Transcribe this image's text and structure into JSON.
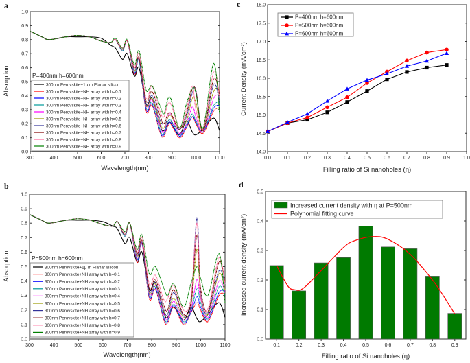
{
  "chart_data": [
    {
      "panel": "a",
      "type": "line",
      "annotation": "P=400nm h=600nm",
      "xlabel": "Wavelength(nm)",
      "ylabel": "Absorption",
      "xlim": [
        300,
        1100
      ],
      "ylim": [
        0,
        1.0
      ],
      "xticks": [
        "300",
        "400",
        "500",
        "600",
        "700",
        "800",
        "900",
        "1000",
        "1100"
      ],
      "yticks": [
        "0.0",
        "0.1",
        "0.2",
        "0.3",
        "0.4",
        "0.5",
        "0.6",
        "0.7",
        "0.8",
        "0.9",
        "1.0"
      ],
      "legend": "bottom-left",
      "x": [
        300,
        350,
        380,
        450,
        500,
        550,
        600,
        640,
        660,
        690,
        710,
        740,
        760,
        790,
        815,
        850,
        865,
        890,
        930,
        960,
        985,
        1000,
        1030,
        1075,
        1100
      ],
      "series": [
        {
          "name": "300nm Perovskite+1μ m Planar silicon",
          "color": "#000000",
          "values": [
            0.86,
            0.82,
            0.8,
            0.82,
            0.82,
            0.82,
            0.81,
            0.76,
            0.74,
            0.66,
            0.7,
            0.54,
            0.6,
            0.34,
            0.38,
            0.18,
            0.15,
            0.21,
            0.12,
            0.22,
            0.14,
            0.12,
            0.16,
            0.24,
            0.15
          ]
        },
        {
          "name": "300nm Perovskite+NH array with h=0.1",
          "color": "#ff0000",
          "values": [
            0.86,
            0.82,
            0.8,
            0.82,
            0.83,
            0.82,
            0.79,
            0.78,
            0.8,
            0.72,
            0.79,
            0.55,
            0.66,
            0.29,
            0.33,
            0.13,
            0.11,
            0.2,
            0.1,
            0.17,
            0.25,
            0.2,
            0.13,
            0.29,
            0.31
          ]
        },
        {
          "name": "300nm Perovskite+NH array with h=0.2",
          "color": "#0000ff",
          "values": [
            0.86,
            0.82,
            0.8,
            0.82,
            0.83,
            0.82,
            0.79,
            0.78,
            0.8,
            0.72,
            0.79,
            0.56,
            0.65,
            0.3,
            0.34,
            0.14,
            0.12,
            0.21,
            0.11,
            0.18,
            0.25,
            0.21,
            0.14,
            0.31,
            0.33
          ]
        },
        {
          "name": "300nm Perovskite+NH array with h=0.3",
          "color": "#009999",
          "values": [
            0.86,
            0.82,
            0.8,
            0.82,
            0.83,
            0.82,
            0.79,
            0.78,
            0.8,
            0.72,
            0.79,
            0.57,
            0.65,
            0.31,
            0.35,
            0.15,
            0.13,
            0.23,
            0.12,
            0.19,
            0.27,
            0.22,
            0.14,
            0.33,
            0.35
          ]
        },
        {
          "name": "300nm Perovskite+NH array with h=0.4",
          "color": "#ff00ff",
          "values": [
            0.86,
            0.82,
            0.8,
            0.82,
            0.83,
            0.82,
            0.79,
            0.78,
            0.8,
            0.73,
            0.79,
            0.58,
            0.66,
            0.32,
            0.37,
            0.18,
            0.14,
            0.27,
            0.13,
            0.2,
            0.32,
            0.25,
            0.14,
            0.38,
            0.4
          ]
        },
        {
          "name": "300nm Perovskite+NH array with h=0.5",
          "color": "#999900",
          "values": [
            0.86,
            0.82,
            0.8,
            0.82,
            0.83,
            0.82,
            0.79,
            0.78,
            0.8,
            0.73,
            0.79,
            0.58,
            0.66,
            0.33,
            0.38,
            0.2,
            0.17,
            0.26,
            0.17,
            0.22,
            0.38,
            0.35,
            0.15,
            0.43,
            0.44
          ]
        },
        {
          "name": "300nm Perovskite+NH array with h=0.6",
          "color": "#333399",
          "values": [
            0.86,
            0.82,
            0.8,
            0.82,
            0.83,
            0.82,
            0.79,
            0.78,
            0.8,
            0.73,
            0.79,
            0.59,
            0.66,
            0.34,
            0.4,
            0.22,
            0.2,
            0.22,
            0.16,
            0.25,
            0.42,
            0.44,
            0.15,
            0.48,
            0.35
          ]
        },
        {
          "name": "300nm Perovskite+NH array with h=0.7",
          "color": "#800000",
          "values": [
            0.86,
            0.82,
            0.8,
            0.82,
            0.83,
            0.82,
            0.79,
            0.78,
            0.8,
            0.73,
            0.79,
            0.6,
            0.67,
            0.36,
            0.43,
            0.25,
            0.2,
            0.28,
            0.16,
            0.27,
            0.45,
            0.43,
            0.15,
            0.52,
            0.4
          ]
        },
        {
          "name": "300nm Perovskite+NH array with h=0.8",
          "color": "#ff6699",
          "values": [
            0.86,
            0.82,
            0.8,
            0.82,
            0.83,
            0.82,
            0.79,
            0.78,
            0.8,
            0.74,
            0.79,
            0.6,
            0.7,
            0.38,
            0.47,
            0.28,
            0.25,
            0.35,
            0.17,
            0.3,
            0.47,
            0.3,
            0.16,
            0.57,
            0.4
          ]
        },
        {
          "name": "300nm Perovskite+NH array with h=0.9",
          "color": "#008000",
          "values": [
            0.86,
            0.82,
            0.8,
            0.82,
            0.83,
            0.82,
            0.79,
            0.78,
            0.81,
            0.74,
            0.8,
            0.62,
            0.72,
            0.44,
            0.47,
            0.32,
            0.27,
            0.39,
            0.17,
            0.34,
            0.45,
            0.42,
            0.17,
            0.63,
            0.27
          ]
        }
      ]
    },
    {
      "panel": "b",
      "type": "line",
      "annotation": "P=500nm h=600nm",
      "xlabel": "Wavelength(nm)",
      "ylabel": "Absorption",
      "xlim": [
        300,
        1100
      ],
      "ylim": [
        0,
        1.0
      ],
      "xticks": [
        "300",
        "400",
        "500",
        "600",
        "700",
        "800",
        "900",
        "1000",
        "1100"
      ],
      "yticks": [
        "0.0",
        "0.1",
        "0.2",
        "0.3",
        "0.4",
        "0.5",
        "0.6",
        "0.7",
        "0.8",
        "0.9",
        "1.0"
      ],
      "legend": "bottom-left",
      "x": [
        300,
        350,
        380,
        450,
        500,
        550,
        600,
        640,
        660,
        690,
        710,
        740,
        760,
        790,
        815,
        850,
        865,
        890,
        930,
        960,
        985,
        1000,
        1030,
        1075,
        1100
      ],
      "series": [
        {
          "name": "300nm Perovskite+1μ m Planar silicon",
          "color": "#000000",
          "values": [
            0.86,
            0.82,
            0.8,
            0.82,
            0.82,
            0.82,
            0.81,
            0.78,
            0.76,
            0.66,
            0.7,
            0.53,
            0.6,
            0.34,
            0.39,
            0.18,
            0.15,
            0.22,
            0.13,
            0.22,
            0.14,
            0.12,
            0.17,
            0.25,
            0.15
          ]
        },
        {
          "name": "300nm Perovskite+NH array with h=0.1",
          "color": "#ff0000",
          "values": [
            0.86,
            0.82,
            0.8,
            0.82,
            0.83,
            0.82,
            0.79,
            0.78,
            0.81,
            0.71,
            0.8,
            0.53,
            0.66,
            0.28,
            0.34,
            0.13,
            0.11,
            0.22,
            0.1,
            0.18,
            0.25,
            0.2,
            0.12,
            0.3,
            0.31
          ]
        },
        {
          "name": "300nm Perovskite+NH array with h=0.2",
          "color": "#0000ff",
          "values": [
            0.86,
            0.82,
            0.8,
            0.82,
            0.83,
            0.82,
            0.79,
            0.78,
            0.81,
            0.71,
            0.8,
            0.54,
            0.66,
            0.29,
            0.35,
            0.14,
            0.12,
            0.23,
            0.11,
            0.18,
            0.29,
            0.22,
            0.13,
            0.32,
            0.33
          ]
        },
        {
          "name": "300nm Perovskite+NH array with h=0.3",
          "color": "#009999",
          "values": [
            0.86,
            0.82,
            0.8,
            0.82,
            0.83,
            0.82,
            0.79,
            0.78,
            0.81,
            0.71,
            0.8,
            0.55,
            0.66,
            0.3,
            0.36,
            0.15,
            0.13,
            0.24,
            0.12,
            0.19,
            0.35,
            0.25,
            0.14,
            0.36,
            0.3
          ]
        },
        {
          "name": "300nm Perovskite+NH array with h=0.4",
          "color": "#ff00ff",
          "values": [
            0.86,
            0.82,
            0.8,
            0.82,
            0.83,
            0.82,
            0.79,
            0.78,
            0.81,
            0.72,
            0.8,
            0.56,
            0.66,
            0.31,
            0.37,
            0.17,
            0.14,
            0.26,
            0.13,
            0.2,
            0.41,
            0.28,
            0.15,
            0.4,
            0.32
          ]
        },
        {
          "name": "300nm Perovskite+NH array with h=0.5",
          "color": "#999900",
          "values": [
            0.86,
            0.82,
            0.8,
            0.82,
            0.83,
            0.82,
            0.79,
            0.78,
            0.81,
            0.72,
            0.8,
            0.57,
            0.67,
            0.32,
            0.38,
            0.19,
            0.17,
            0.28,
            0.15,
            0.22,
            0.62,
            0.3,
            0.17,
            0.45,
            0.34
          ]
        },
        {
          "name": "300nm Perovskite+NH array with h=0.6",
          "color": "#333399",
          "values": [
            0.86,
            0.82,
            0.8,
            0.82,
            0.83,
            0.82,
            0.79,
            0.78,
            0.81,
            0.72,
            0.8,
            0.58,
            0.67,
            0.33,
            0.39,
            0.2,
            0.17,
            0.32,
            0.16,
            0.23,
            0.84,
            0.32,
            0.18,
            0.47,
            0.38
          ]
        },
        {
          "name": "300nm Perovskite+NH array with h=0.7",
          "color": "#800000",
          "values": [
            0.86,
            0.82,
            0.8,
            0.82,
            0.83,
            0.82,
            0.79,
            0.78,
            0.81,
            0.72,
            0.8,
            0.59,
            0.68,
            0.35,
            0.41,
            0.23,
            0.2,
            0.34,
            0.17,
            0.25,
            0.72,
            0.35,
            0.19,
            0.53,
            0.4
          ]
        },
        {
          "name": "300nm Perovskite+NH array with h=0.8",
          "color": "#ff6699",
          "values": [
            0.86,
            0.82,
            0.8,
            0.82,
            0.83,
            0.82,
            0.79,
            0.78,
            0.81,
            0.73,
            0.8,
            0.6,
            0.7,
            0.38,
            0.44,
            0.27,
            0.28,
            0.37,
            0.2,
            0.28,
            0.8,
            0.3,
            0.21,
            0.56,
            0.38
          ]
        },
        {
          "name": "300nm Perovskite+NH array with h=0.9",
          "color": "#008000",
          "values": [
            0.86,
            0.82,
            0.8,
            0.82,
            0.83,
            0.82,
            0.79,
            0.78,
            0.81,
            0.74,
            0.8,
            0.62,
            0.72,
            0.45,
            0.5,
            0.35,
            0.3,
            0.38,
            0.22,
            0.38,
            0.5,
            0.42,
            0.3,
            0.59,
            0.25
          ]
        }
      ]
    },
    {
      "panel": "c",
      "type": "line",
      "xlabel": "Filling ratio of Si nanoholes (η)",
      "ylabel": "Current Density (mA/cm²)",
      "xlim": [
        0,
        1.0
      ],
      "ylim": [
        14.0,
        18.0
      ],
      "xticks": [
        "0.0",
        "0.1",
        "0.2",
        "0.3",
        "0.4",
        "0.5",
        "0.6",
        "0.7",
        "0.8",
        "0.9",
        "1.0"
      ],
      "yticks": [
        "14.0",
        "14.5",
        "15.0",
        "15.5",
        "16.0",
        "16.5",
        "17.0",
        "17.5",
        "18.0"
      ],
      "legend": "top-left",
      "x": [
        0.0,
        0.1,
        0.2,
        0.3,
        0.4,
        0.5,
        0.6,
        0.7,
        0.8,
        0.9
      ],
      "series": [
        {
          "name": "P=400nm h=600nm",
          "color": "#000000",
          "marker": "square",
          "values": [
            14.55,
            14.78,
            14.87,
            15.07,
            15.35,
            15.65,
            15.97,
            16.17,
            16.29,
            16.36
          ]
        },
        {
          "name": "P=500nm h=600nm",
          "color": "#ff0000",
          "marker": "circle",
          "values": [
            14.55,
            14.78,
            14.93,
            15.21,
            15.48,
            15.87,
            16.18,
            16.48,
            16.7,
            16.78
          ]
        },
        {
          "name": "P=600nm h=600nm",
          "color": "#0000ff",
          "marker": "triangle",
          "values": [
            14.55,
            14.8,
            15.03,
            15.38,
            15.71,
            15.95,
            16.12,
            16.33,
            16.47,
            16.68
          ]
        }
      ]
    },
    {
      "panel": "d",
      "type": "bar",
      "xlabel": "Filling ratio of Si nanoholes (η)",
      "ylabel": "Increased current density (mA/cm²)",
      "xlim": [
        0.05,
        0.95
      ],
      "ylim": [
        0,
        0.5
      ],
      "categories": [
        "0.1",
        "0.2",
        "0.3",
        "0.4",
        "0.5",
        "0.6",
        "0.7",
        "0.8",
        "0.9"
      ],
      "yticks": [
        "0.0",
        "0.1",
        "0.2",
        "0.3",
        "0.4",
        "0.5"
      ],
      "legend": "top",
      "bars": {
        "name": "Increased current density with η at P=500nm",
        "color": "#007a00",
        "x": [
          0.1,
          0.2,
          0.3,
          0.4,
          0.5,
          0.6,
          0.7,
          0.8,
          0.9
        ],
        "values": [
          0.249,
          0.163,
          0.258,
          0.276,
          0.383,
          0.312,
          0.306,
          0.213,
          0.087
        ]
      },
      "fit": {
        "name": "Polynomial fitting curve",
        "color": "#ff0000",
        "x": [
          0.1,
          0.15,
          0.18,
          0.22,
          0.3,
          0.4,
          0.45,
          0.53,
          0.6,
          0.7,
          0.8,
          0.85,
          0.9
        ],
        "values": [
          0.249,
          0.18,
          0.167,
          0.172,
          0.232,
          0.31,
          0.333,
          0.347,
          0.338,
          0.287,
          0.2,
          0.145,
          0.085
        ]
      }
    }
  ]
}
